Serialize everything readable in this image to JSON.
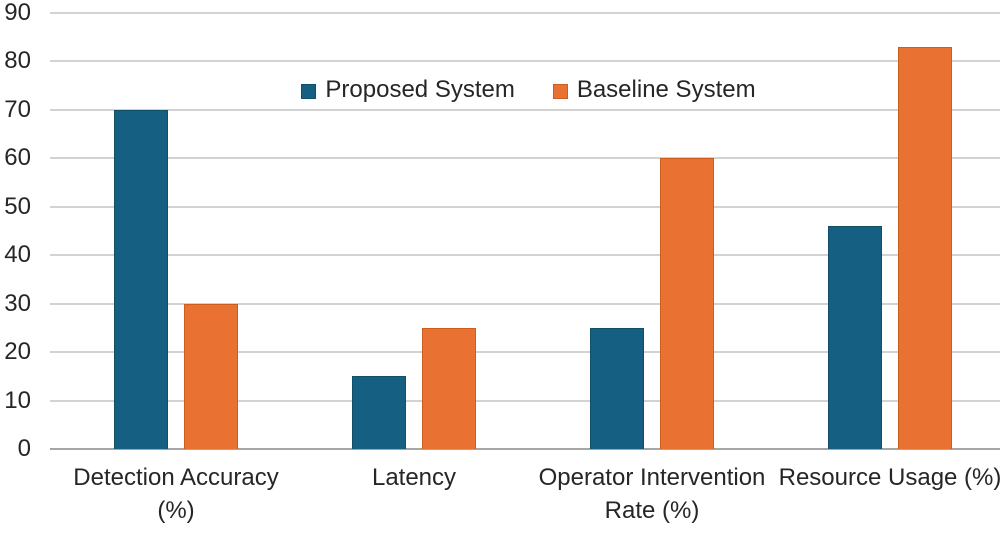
{
  "chart_data": {
    "type": "bar",
    "title": "",
    "xlabel": "",
    "ylabel": "",
    "categories": [
      "Detection Accuracy (%)",
      "Latency",
      "Operator Intervention Rate (%)",
      "Resource Usage (%)"
    ],
    "category_lines": [
      [
        "Detection Accuracy",
        "(%)"
      ],
      [
        "Latency"
      ],
      [
        "Operator Intervention",
        "Rate (%)"
      ],
      [
        "Resource Usage (%)"
      ]
    ],
    "series": [
      {
        "name": "Proposed System",
        "color": "#156082",
        "border_color": "#114e68",
        "values": [
          70,
          15,
          25,
          46
        ]
      },
      {
        "name": "Baseline System",
        "color": "#E97132",
        "border_color": "#cc5c20",
        "values": [
          30,
          25,
          60,
          83
        ]
      }
    ],
    "ylim": [
      0,
      90
    ],
    "ytick_step": 10,
    "grid": true,
    "legend_position": "top-center"
  },
  "colors": {
    "background": "#FFFFFF",
    "gridline": "#D2D2D2",
    "axis_line": "#A6A6A6",
    "text": "#262626"
  }
}
